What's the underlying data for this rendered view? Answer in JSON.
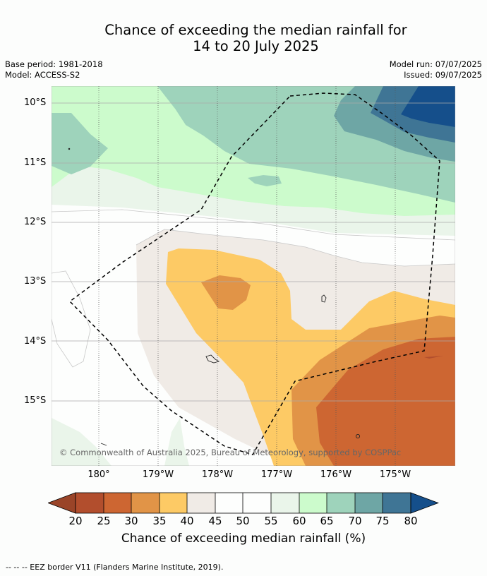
{
  "title": {
    "line1": "Chance of exceeding the median rainfall for",
    "line2": "14 to 20 July 2025"
  },
  "meta": {
    "base_period": "Base period: 1981-2018",
    "model": "Model: ACCESS-S2",
    "model_run": "Model run: 07/07/2025",
    "issued": "Issued: 09/07/2025"
  },
  "axes": {
    "latitude_labels": [
      "10°S",
      "11°S",
      "12°S",
      "13°S",
      "14°S",
      "15°S"
    ],
    "longitude_labels": [
      "180°",
      "179°W",
      "178°W",
      "177°W",
      "176°W",
      "175°W"
    ]
  },
  "credit": "© Commonwealth of Australia 2025, Bureau of Meteorology, supported by COSPPac",
  "colorbar": {
    "ticks": [
      "20",
      "25",
      "30",
      "35",
      "40",
      "45",
      "50",
      "55",
      "60",
      "65",
      "70",
      "75",
      "80"
    ],
    "label": "Chance of exceeding median rainfall (%)",
    "colors": {
      "below_20": "#9a4428",
      "20_25": "#b24e2d",
      "25_30": "#cd6632",
      "30_35": "#e19447",
      "35_40": "#fdca65",
      "40_45": "#f0ebe6",
      "45_50": "#fdfefd",
      "50_55": "#fdfefd",
      "55_60": "#eaf5ea",
      "60_65": "#ccfbcc",
      "65_70": "#9ed3bb",
      "70_75": "#6ea6a5",
      "75_80": "#3f7595",
      "above_80": "#154f8b"
    }
  },
  "legend_text": "--  --  -- EEZ border V11 (Flanders Marine Institute, 2019)."
}
